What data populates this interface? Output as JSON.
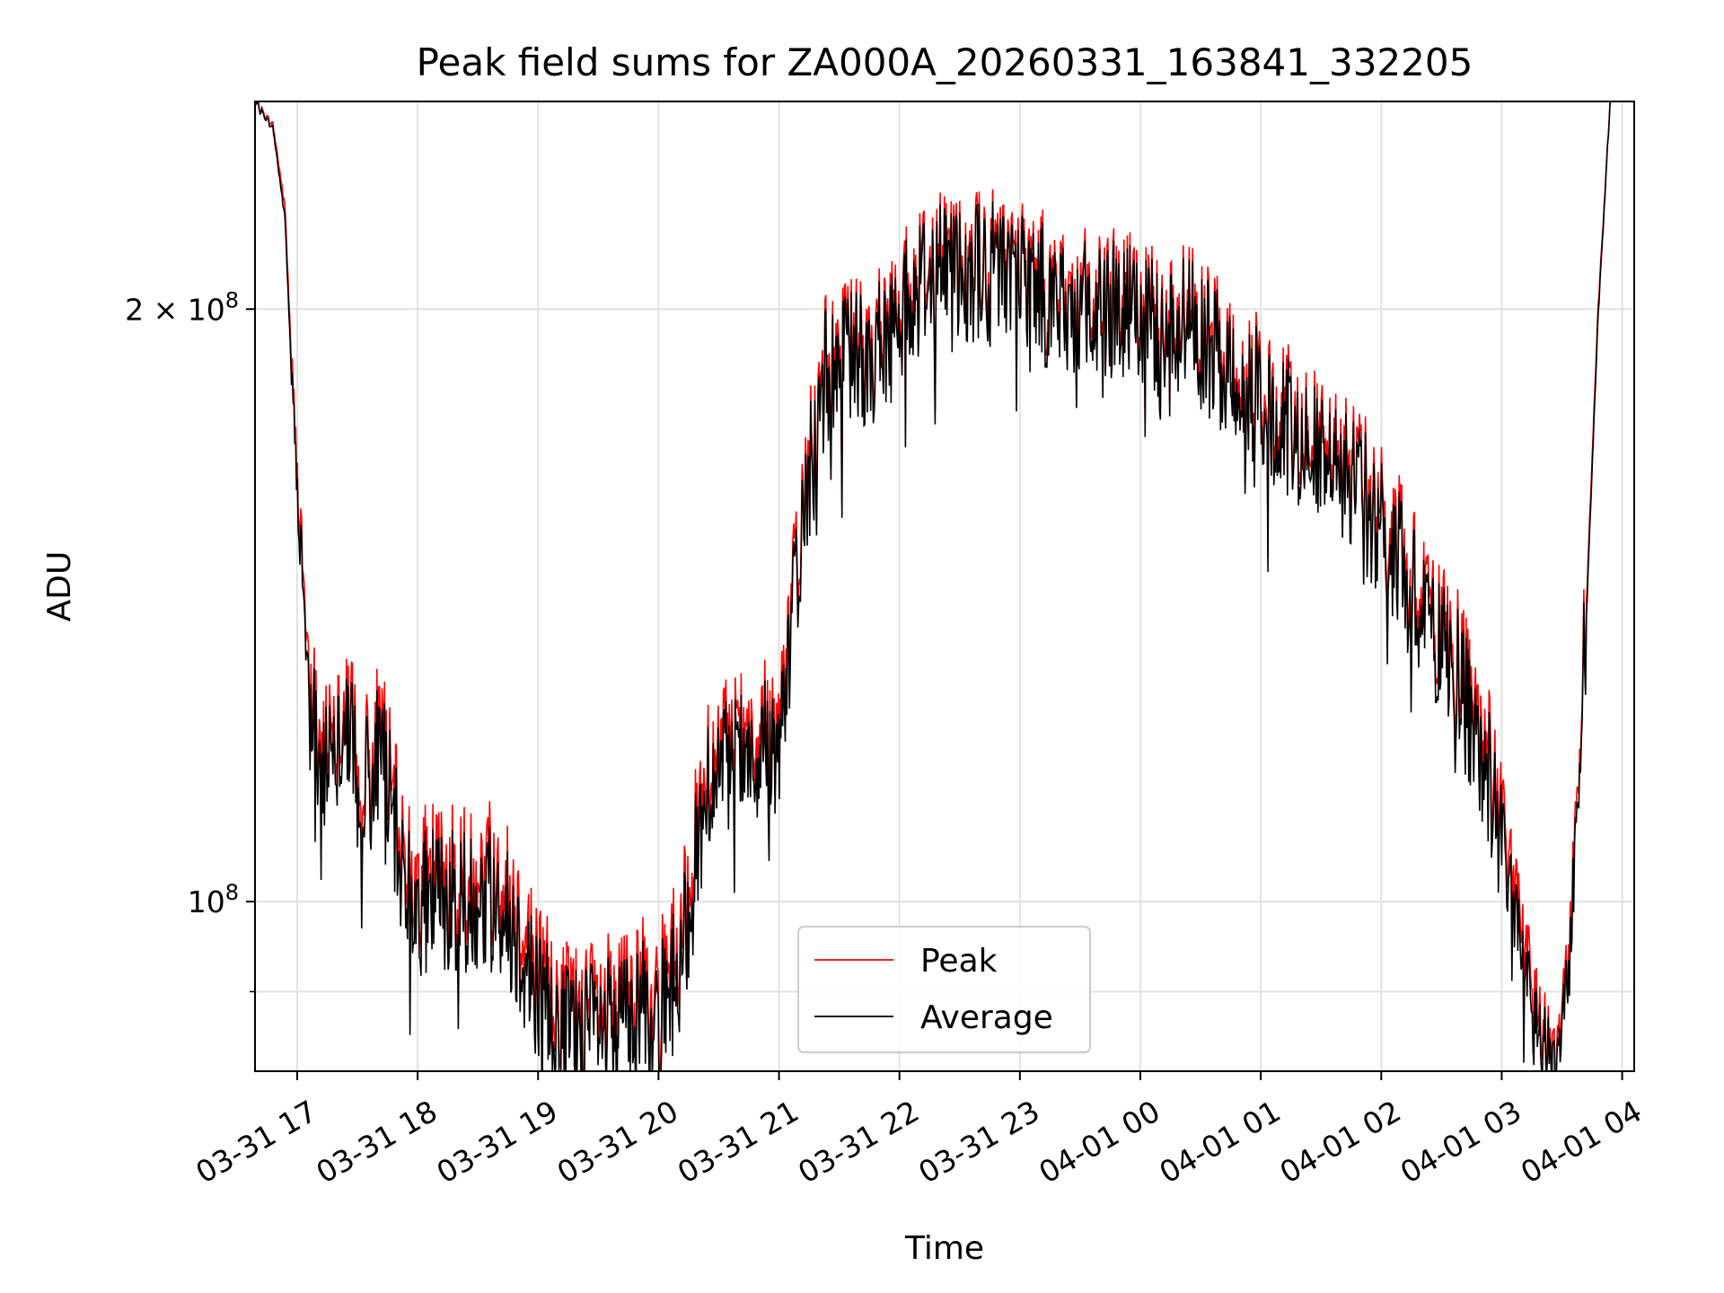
{
  "chart_data": {
    "type": "line",
    "title": "Peak field sums for ZA000A_20260331_163841_332205",
    "xlabel": "Time",
    "ylabel": "ADU",
    "yscale": "log",
    "ylim": [
      82000000,
      255000000
    ],
    "xlim": [
      16.65,
      28.1
    ],
    "grid": true,
    "legend_position": "lower-center",
    "x_ticks": [
      {
        "value": 17,
        "label": "03-31 17"
      },
      {
        "value": 18,
        "label": "03-31 18"
      },
      {
        "value": 19,
        "label": "03-31 19"
      },
      {
        "value": 20,
        "label": "03-31 20"
      },
      {
        "value": 21,
        "label": "03-31 21"
      },
      {
        "value": 22,
        "label": "03-31 22"
      },
      {
        "value": 23,
        "label": "03-31 23"
      },
      {
        "value": 24,
        "label": "04-01 00"
      },
      {
        "value": 25,
        "label": "04-01 01"
      },
      {
        "value": 26,
        "label": "04-01 02"
      },
      {
        "value": 27,
        "label": "04-01 03"
      },
      {
        "value": 28,
        "label": "04-01 04"
      }
    ],
    "y_ticks_major": [
      {
        "value": 100000000,
        "base": "10",
        "exp": "8",
        "coef": ""
      },
      {
        "value": 200000000,
        "base": "10",
        "exp": "8",
        "coef": "2 × "
      }
    ],
    "y_ticks_minor": [
      90000000
    ],
    "series": [
      {
        "name": "Peak",
        "color": "#ff0000",
        "x": [
          16.65,
          16.8,
          16.9,
          16.95,
          17.0,
          17.05,
          17.1,
          17.2,
          17.3,
          17.4,
          17.5,
          17.6,
          17.7,
          17.8,
          17.9,
          18.0,
          18.2,
          18.4,
          18.6,
          18.8,
          19.0,
          19.2,
          19.4,
          19.6,
          19.8,
          20.0,
          20.2,
          20.4,
          20.6,
          20.8,
          21.0,
          21.2,
          21.4,
          21.6,
          21.8,
          22.0,
          22.2,
          22.4,
          22.6,
          22.8,
          23.0,
          23.2,
          23.4,
          23.6,
          23.8,
          24.0,
          24.2,
          24.4,
          24.6,
          24.8,
          25.0,
          25.2,
          25.4,
          25.6,
          25.8,
          26.0,
          26.2,
          26.4,
          26.6,
          26.8,
          27.0,
          27.1,
          27.2,
          27.3,
          27.4,
          27.5,
          27.6,
          27.7,
          27.8,
          27.9
        ],
        "values": [
          255000000,
          248000000,
          225000000,
          190000000,
          165000000,
          148000000,
          130000000,
          120000000,
          125000000,
          128000000,
          122000000,
          118000000,
          125000000,
          112000000,
          106000000,
          103000000,
          104000000,
          103000000,
          105000000,
          100000000,
          93000000,
          89000000,
          88000000,
          89000000,
          91000000,
          90000000,
          97000000,
          118000000,
          120000000,
          122000000,
          125000000,
          160000000,
          190000000,
          193000000,
          193000000,
          200000000,
          211000000,
          214000000,
          213000000,
          214000000,
          212000000,
          207000000,
          202000000,
          203000000,
          205000000,
          200000000,
          197000000,
          202000000,
          193000000,
          188000000,
          184000000,
          178000000,
          174000000,
          170000000,
          166000000,
          158000000,
          150000000,
          143000000,
          135000000,
          124000000,
          112000000,
          102000000,
          95000000,
          88000000,
          84000000,
          86000000,
          105000000,
          140000000,
          200000000,
          255000000
        ]
      },
      {
        "name": "Average",
        "color": "#000000",
        "x": [
          16.65,
          16.8,
          16.9,
          16.95,
          17.0,
          17.05,
          17.1,
          17.2,
          17.3,
          17.4,
          17.5,
          17.6,
          17.7,
          17.8,
          17.9,
          18.0,
          18.2,
          18.4,
          18.6,
          18.8,
          19.0,
          19.2,
          19.4,
          19.6,
          19.8,
          20.0,
          20.2,
          20.4,
          20.6,
          20.8,
          21.0,
          21.2,
          21.4,
          21.6,
          21.8,
          22.0,
          22.2,
          22.4,
          22.6,
          22.8,
          23.0,
          23.2,
          23.4,
          23.6,
          23.8,
          24.0,
          24.2,
          24.4,
          24.6,
          24.8,
          25.0,
          25.2,
          25.4,
          25.6,
          25.8,
          26.0,
          26.2,
          26.4,
          26.6,
          26.8,
          27.0,
          27.1,
          27.2,
          27.3,
          27.4,
          27.5,
          27.6,
          27.7,
          27.8,
          27.9
        ],
        "values": [
          255000000,
          247000000,
          222000000,
          187000000,
          162000000,
          145000000,
          127000000,
          117000000,
          122000000,
          125000000,
          119000000,
          115000000,
          122000000,
          109000000,
          103000000,
          100000000,
          101000000,
          100000000,
          102000000,
          97000000,
          90000000,
          86500000,
          86000000,
          86500000,
          88500000,
          87500000,
          94000000,
          115000000,
          117000000,
          119000000,
          122000000,
          157000000,
          187000000,
          190000000,
          190000000,
          197000000,
          208000000,
          211000000,
          210000000,
          211000000,
          209000000,
          204000000,
          199000000,
          200000000,
          202000000,
          197000000,
          194000000,
          199000000,
          190000000,
          185000000,
          181000000,
          175000000,
          171000000,
          167000000,
          163000000,
          155000000,
          147000000,
          140000000,
          132000000,
          121000000,
          109000000,
          99000000,
          92000000,
          86000000,
          83000000,
          84500000,
          103000000,
          138000000,
          198000000,
          255000000
        ]
      }
    ]
  }
}
